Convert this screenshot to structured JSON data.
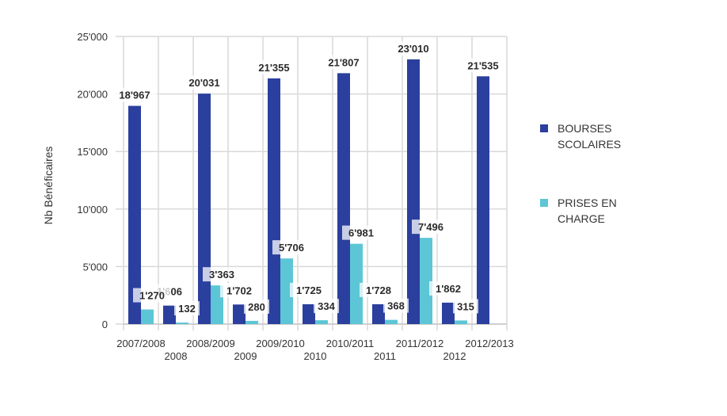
{
  "chart_data": {
    "type": "bar",
    "title": "",
    "xlabel": "",
    "ylabel": "Nb Bénéficaires",
    "ylim": [
      0,
      25000
    ],
    "yticks": [
      "0",
      "5'000",
      "10'000",
      "15'000",
      "20'000",
      "25'000"
    ],
    "grid": true,
    "legend_position": "right",
    "categories": [
      {
        "label": "2007/2008",
        "row": 1
      },
      {
        "label": "2008",
        "row": 2
      },
      {
        "label": "2008/2009",
        "row": 1
      },
      {
        "label": "2009",
        "row": 2
      },
      {
        "label": "2009/2010",
        "row": 1
      },
      {
        "label": "2010",
        "row": 2
      },
      {
        "label": "2010/2011",
        "row": 1
      },
      {
        "label": "2011",
        "row": 2
      },
      {
        "label": "2011/2012",
        "row": 1
      },
      {
        "label": "2012",
        "row": 2
      },
      {
        "label": "2012/2013",
        "row": 1
      }
    ],
    "series": [
      {
        "name": "BOURSES SCOLAIRES",
        "legend_lines": [
          "BOURSES",
          "SCOLAIRES"
        ],
        "color": "#2b3f9e",
        "values": [
          18967,
          1606,
          20031,
          1702,
          21355,
          1725,
          21807,
          1728,
          23010,
          1862,
          21535
        ],
        "labels": [
          "18'967",
          "1'606",
          "20'031",
          "1'702",
          "21'355",
          "1'725",
          "21'807",
          "1'728",
          "23'010",
          "1'862",
          "21'535"
        ]
      },
      {
        "name": "PRISES EN CHARGE",
        "legend_lines": [
          "PRISES EN",
          "CHARGE"
        ],
        "color": "#5cc6d6",
        "values": [
          1270,
          132,
          3363,
          280,
          5706,
          334,
          6981,
          368,
          7496,
          315,
          null
        ],
        "labels": [
          "1'270",
          "132",
          "3'363",
          "280",
          "5'706",
          "334",
          "6'981",
          "368",
          "7'496",
          "315",
          null
        ]
      }
    ]
  }
}
